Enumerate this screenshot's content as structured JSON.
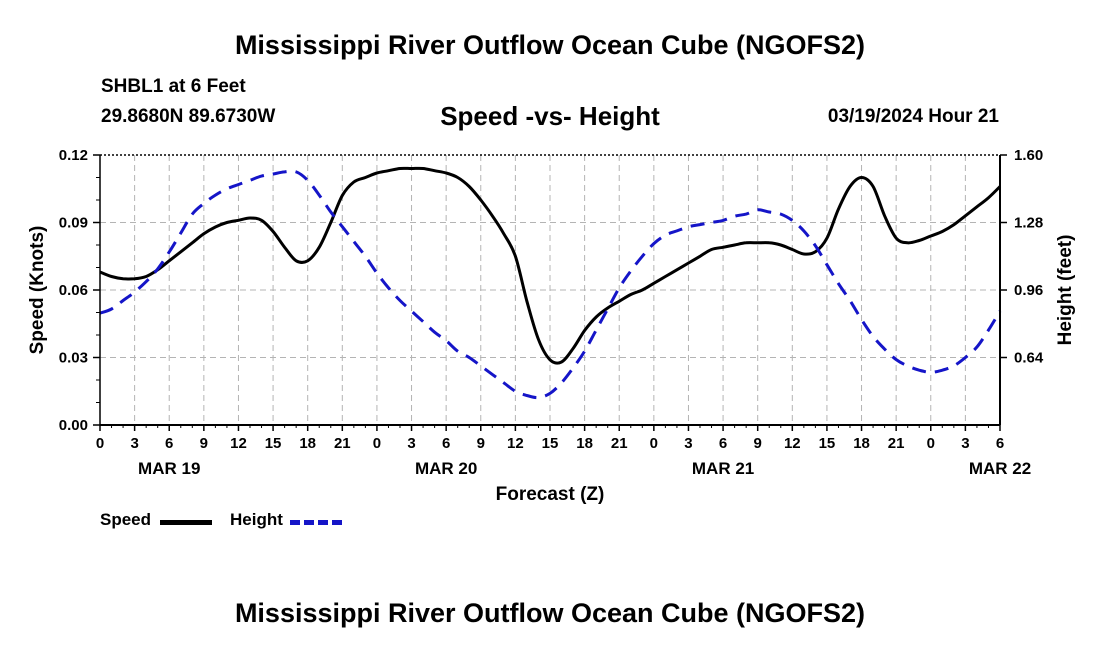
{
  "page": {
    "title_top": "Mississippi River Outflow Ocean Cube (NGOFS2)",
    "title_bottom": "Mississippi River Outflow Ocean Cube (NGOFS2)",
    "station": "SHBL1 at 6 Feet",
    "coords": "29.8680N  89.6730W",
    "subtitle": "Speed -vs- Height",
    "timestamp": "03/19/2024 Hour 21"
  },
  "legend": {
    "speed_label": "Speed",
    "height_label": "Height"
  },
  "chart_data": {
    "type": "line",
    "title": "Speed -vs- Height",
    "xlabel": "Forecast (Z)",
    "ylabel_left": "Speed (Knots)",
    "ylabel_right": "Height (feet)",
    "x_range_hours": [
      0,
      78
    ],
    "x_tick_labels": [
      "0",
      "3",
      "6",
      "9",
      "12",
      "15",
      "18",
      "21",
      "0",
      "3",
      "6",
      "9",
      "12",
      "15",
      "18",
      "21",
      "0",
      "3",
      "6",
      "9",
      "12",
      "15",
      "18",
      "21",
      "0",
      "3",
      "6"
    ],
    "date_labels": [
      {
        "hour": 6,
        "label": "MAR 19"
      },
      {
        "hour": 30,
        "label": "MAR 20"
      },
      {
        "hour": 54,
        "label": "MAR 21"
      },
      {
        "hour": 78,
        "label": "MAR 22"
      }
    ],
    "left_axis": {
      "min": 0,
      "max": 0.12,
      "ticks": [
        "0.00",
        "0.03",
        "0.06",
        "0.09",
        "0.12"
      ]
    },
    "right_axis": {
      "min": 0.32,
      "max": 1.6,
      "ticks": [
        "0.64",
        "0.96",
        "1.28",
        "1.60"
      ]
    },
    "grid": true,
    "colors": {
      "speed": "#000000",
      "height": "#1515c8",
      "grid": "#b4b4b4"
    },
    "series": [
      {
        "name": "Speed",
        "axis": "left",
        "style": "solid",
        "x": [
          0,
          1,
          2,
          3,
          4,
          5,
          6,
          7,
          8,
          9,
          10,
          11,
          12,
          13,
          14,
          15,
          16,
          17,
          18,
          19,
          20,
          21,
          22,
          23,
          24,
          25,
          26,
          27,
          28,
          29,
          30,
          31,
          32,
          33,
          34,
          35,
          36,
          37,
          38,
          39,
          40,
          41,
          42,
          43,
          44,
          45,
          46,
          47,
          48,
          49,
          50,
          51,
          52,
          53,
          54,
          55,
          56,
          57,
          58,
          59,
          60,
          61,
          62,
          63,
          64,
          65,
          66,
          67,
          68,
          69,
          70,
          71,
          72,
          73,
          74,
          75,
          76,
          77,
          78
        ],
        "values": [
          0.068,
          0.066,
          0.065,
          0.065,
          0.066,
          0.069,
          0.073,
          0.077,
          0.081,
          0.085,
          0.088,
          0.09,
          0.091,
          0.092,
          0.091,
          0.086,
          0.079,
          0.073,
          0.073,
          0.079,
          0.09,
          0.102,
          0.108,
          0.11,
          0.112,
          0.113,
          0.114,
          0.114,
          0.114,
          0.113,
          0.112,
          0.11,
          0.106,
          0.1,
          0.093,
          0.085,
          0.075,
          0.055,
          0.038,
          0.029,
          0.028,
          0.034,
          0.042,
          0.048,
          0.052,
          0.055,
          0.058,
          0.06,
          0.063,
          0.066,
          0.069,
          0.072,
          0.075,
          0.078,
          0.079,
          0.08,
          0.081,
          0.081,
          0.081,
          0.08,
          0.078,
          0.076,
          0.077,
          0.083,
          0.096,
          0.106,
          0.11,
          0.106,
          0.093,
          0.083,
          0.081,
          0.082,
          0.084,
          0.086,
          0.089,
          0.093,
          0.097,
          0.101,
          0.106
        ]
      },
      {
        "name": "Height",
        "axis": "right",
        "style": "dashed",
        "x": [
          0,
          1,
          2,
          3,
          4,
          5,
          6,
          7,
          8,
          9,
          10,
          11,
          12,
          13,
          14,
          15,
          16,
          17,
          18,
          19,
          20,
          21,
          22,
          23,
          24,
          25,
          26,
          27,
          28,
          29,
          30,
          31,
          32,
          33,
          34,
          35,
          36,
          37,
          38,
          39,
          40,
          41,
          42,
          43,
          44,
          45,
          46,
          47,
          48,
          49,
          50,
          51,
          52,
          53,
          54,
          55,
          56,
          57,
          58,
          59,
          60,
          61,
          62,
          63,
          64,
          65,
          66,
          67,
          68,
          69,
          70,
          71,
          72,
          73,
          74,
          75,
          76,
          77,
          78
        ],
        "values": [
          0.85,
          0.87,
          0.91,
          0.95,
          1.0,
          1.06,
          1.14,
          1.23,
          1.32,
          1.37,
          1.41,
          1.44,
          1.46,
          1.48,
          1.5,
          1.51,
          1.52,
          1.52,
          1.48,
          1.41,
          1.33,
          1.26,
          1.19,
          1.12,
          1.04,
          0.97,
          0.91,
          0.86,
          0.81,
          0.76,
          0.72,
          0.67,
          0.64,
          0.6,
          0.56,
          0.52,
          0.48,
          0.46,
          0.45,
          0.47,
          0.52,
          0.59,
          0.67,
          0.77,
          0.87,
          0.97,
          1.05,
          1.12,
          1.18,
          1.22,
          1.24,
          1.26,
          1.27,
          1.28,
          1.29,
          1.31,
          1.32,
          1.34,
          1.33,
          1.32,
          1.29,
          1.24,
          1.17,
          1.08,
          0.99,
          0.91,
          0.82,
          0.74,
          0.68,
          0.63,
          0.6,
          0.58,
          0.57,
          0.58,
          0.6,
          0.64,
          0.69,
          0.77,
          0.86
        ]
      }
    ]
  }
}
